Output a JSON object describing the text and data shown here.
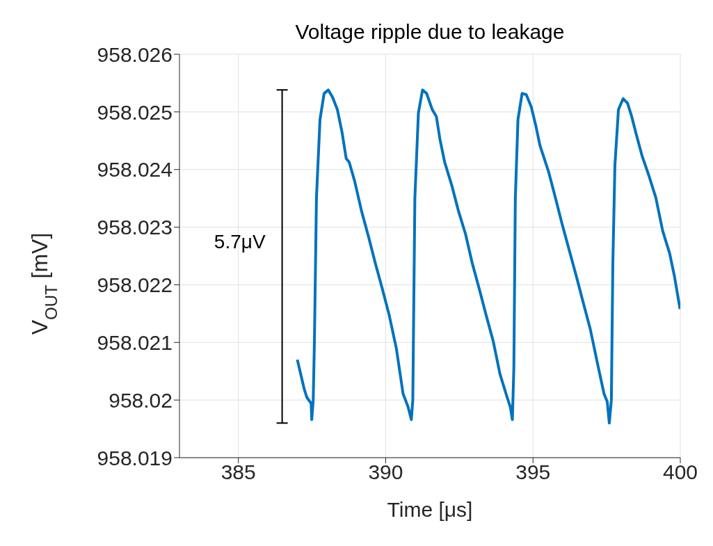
{
  "chart_data": {
    "type": "line",
    "title": "Voltage ripple due to leakage",
    "xlabel": "Time [μs]",
    "ylabel": "V$_{OUT}$ [mV]",
    "xlim": [
      383,
      400
    ],
    "xticks": [
      385,
      390,
      395,
      400
    ],
    "ylim": [
      958.019,
      958.026
    ],
    "yticks": [
      958.019,
      958.02,
      958.021,
      958.022,
      958.023,
      958.024,
      958.025,
      958.026
    ],
    "grid": true,
    "annotations": [
      "5.7μV"
    ],
    "series": [
      {
        "color": "#0072bd",
        "x": [
          387.0,
          387.23,
          387.32,
          387.47,
          387.49,
          387.54,
          387.58,
          387.65,
          387.77,
          387.91,
          388.05,
          388.19,
          388.36,
          388.52,
          388.66,
          388.76,
          388.95,
          389.18,
          389.42,
          389.65,
          389.89,
          390.12,
          390.36,
          390.59,
          390.76,
          390.87,
          390.92,
          390.99,
          391.11,
          391.25,
          391.39,
          391.58,
          391.72,
          391.84,
          392.0,
          392.24,
          392.47,
          392.71,
          392.94,
          393.18,
          393.41,
          393.65,
          393.88,
          394.12,
          394.23,
          394.3,
          394.35,
          394.4,
          394.49,
          394.63,
          394.77,
          394.94,
          395.1,
          395.24,
          395.53,
          395.76,
          395.99,
          396.23,
          396.47,
          396.7,
          396.94,
          397.17,
          397.41,
          397.52,
          397.59,
          397.66,
          397.71,
          397.78,
          397.9,
          398.06,
          398.21,
          398.35,
          398.49,
          398.7,
          398.93,
          399.17,
          399.4,
          399.64,
          399.8,
          399.99
        ],
        "values": [
          958.0207,
          958.0202,
          958.02005,
          958.01994,
          958.01966,
          958.02,
          958.021,
          958.02351,
          958.02487,
          958.02532,
          958.02538,
          958.02526,
          958.02504,
          958.02464,
          958.02419,
          958.02413,
          958.02379,
          958.02328,
          958.02283,
          958.02237,
          958.02192,
          958.02147,
          958.0209,
          958.02011,
          958.01988,
          958.01966,
          958.02,
          958.0235,
          958.02498,
          958.02538,
          958.02532,
          958.02504,
          958.02492,
          958.02453,
          958.02413,
          958.02373,
          958.02328,
          958.02288,
          958.02237,
          958.02192,
          958.02147,
          958.02102,
          958.02045,
          958.02005,
          958.01988,
          958.01966,
          958.02056,
          958.0235,
          958.02487,
          958.02532,
          958.0253,
          958.02509,
          958.02475,
          958.02441,
          958.02396,
          958.02351,
          958.02305,
          958.0226,
          958.02215,
          958.0217,
          958.02124,
          958.02068,
          958.02011,
          958.01997,
          958.0196,
          958.02,
          958.02237,
          958.02407,
          958.02504,
          958.02523,
          958.02515,
          958.02492,
          958.02464,
          958.02424,
          958.0239,
          958.02351,
          958.02294,
          958.02254,
          958.02215,
          958.02158
        ]
      }
    ]
  }
}
